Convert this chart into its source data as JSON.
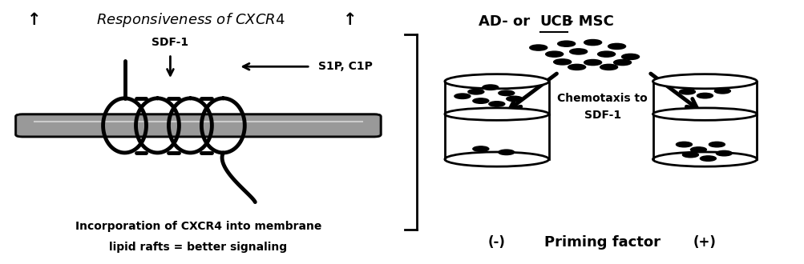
{
  "bg_color": "#ffffff",
  "label_sdf1": "SDF-1",
  "label_s1p": "S1P, C1P",
  "caption_left_line1": "Incorporation of CXCR4 into membrane",
  "caption_left_line2": "lipid rafts = better signaling",
  "title_right_part1": "AD- or ",
  "title_right_ucb": "UCB",
  "title_right_part2": "- MSC",
  "label_chemotaxis_line1": "Chemotaxis to",
  "label_chemotaxis_line2": "SDF-1",
  "label_minus": "(-)",
  "label_plus": "(+)",
  "label_priming": "Priming factor",
  "membrane_color": "#999999",
  "membrane_highlight": "#cccccc",
  "protein_color": "#000000",
  "arrow_color": "#000000",
  "dot_color": "#000000"
}
